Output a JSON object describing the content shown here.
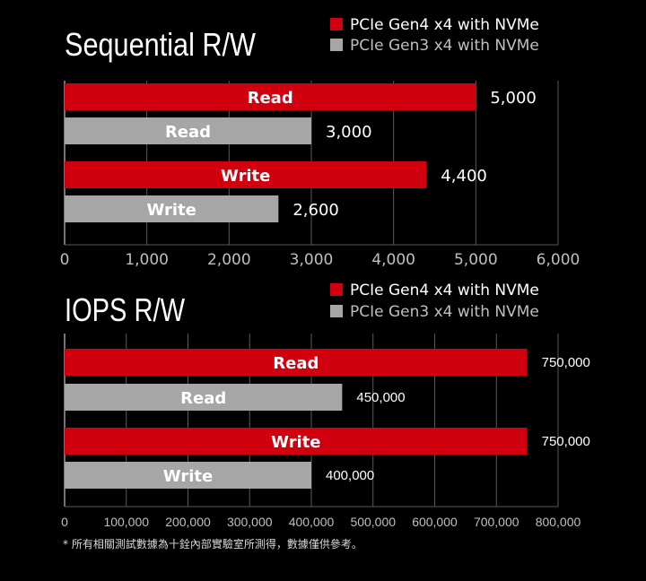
{
  "colors": {
    "gen4": "#d0000f",
    "gen3": "#a6a6a6",
    "grid": "#5a5a5a",
    "background": "#000000"
  },
  "legend": {
    "gen4": "PCIe Gen4 x4 with NVMe",
    "gen3": "PCIe Gen3 x4 with NVMe"
  },
  "chart_data": [
    {
      "type": "bar",
      "orientation": "horizontal",
      "title": "Sequential R/W",
      "xlim": [
        0,
        6000
      ],
      "xticks": [
        0,
        1000,
        2000,
        3000,
        4000,
        5000,
        6000
      ],
      "tick_labels": [
        "0",
        "1,000",
        "2,000",
        "3,000",
        "4,000",
        "5,000",
        "6,000"
      ],
      "bars": [
        {
          "label": "Read",
          "series": "gen4",
          "value": 5000,
          "value_label": "5,000"
        },
        {
          "label": "Read",
          "series": "gen3",
          "value": 3000,
          "value_label": "3,000"
        },
        {
          "label": "Write",
          "series": "gen4",
          "value": 4400,
          "value_label": "4,400"
        },
        {
          "label": "Write",
          "series": "gen3",
          "value": 2600,
          "value_label": "2,600"
        }
      ],
      "legend_placement": "top-right",
      "grid": true
    },
    {
      "type": "bar",
      "orientation": "horizontal",
      "title": "IOPS R/W",
      "xlim": [
        0,
        800000
      ],
      "xticks": [
        0,
        100000,
        200000,
        300000,
        400000,
        500000,
        600000,
        700000,
        800000
      ],
      "tick_labels": [
        "0",
        "100,000",
        "200,000",
        "300,000",
        "400,000",
        "500,000",
        "600,000",
        "700,000",
        "800,000"
      ],
      "bars": [
        {
          "label": "Read",
          "series": "gen4",
          "value": 750000,
          "value_label": "750,000"
        },
        {
          "label": "Read",
          "series": "gen3",
          "value": 450000,
          "value_label": "450,000"
        },
        {
          "label": "Write",
          "series": "gen4",
          "value": 750000,
          "value_label": "750,000"
        },
        {
          "label": "Write",
          "series": "gen3",
          "value": 400000,
          "value_label": "400,000"
        }
      ],
      "legend_placement": "top-right",
      "grid": true
    }
  ],
  "footnote": "* 所有相關測試數據為十銓內部實驗室所測得，數據僅供參考。"
}
